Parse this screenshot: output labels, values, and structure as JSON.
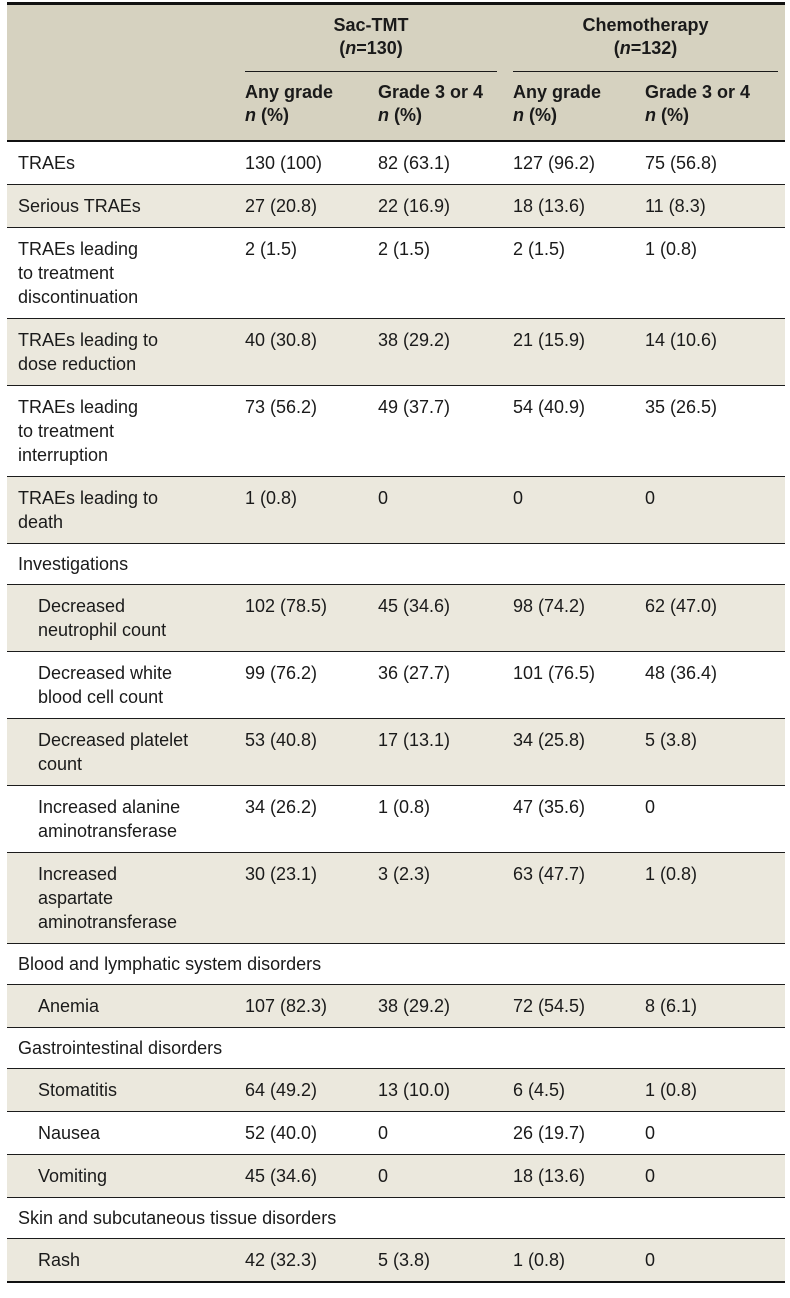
{
  "table": {
    "colors": {
      "header_bg": "#d6d2c0",
      "stripe_bg": "#ebe8dd",
      "rule": "#1c1c1c",
      "border": "#111111",
      "text": "#1a1a1a"
    },
    "groups": [
      {
        "label": "Sac-TMT",
        "subtitle": "(n=130)"
      },
      {
        "label": "Chemotherapy",
        "subtitle": "(n=132)"
      }
    ],
    "subcolumns": [
      {
        "title": "Any grade",
        "unit": "n (%)"
      },
      {
        "title": "Grade 3 or 4",
        "unit": "n (%)"
      },
      {
        "title": "Any grade",
        "unit": "n (%)"
      },
      {
        "title": "Grade 3 or 4",
        "unit": "n (%)"
      }
    ],
    "rows": [
      {
        "type": "item",
        "indent": 0,
        "shaded": false,
        "label": "TRAEs",
        "values": [
          "130 (100)",
          "82 (63.1)",
          "127 (96.2)",
          "75 (56.8)"
        ]
      },
      {
        "type": "item",
        "indent": 0,
        "shaded": true,
        "label": "Serious TRAEs",
        "values": [
          "27 (20.8)",
          "22 (16.9)",
          "18 (13.6)",
          "11 (8.3)"
        ]
      },
      {
        "type": "item",
        "indent": 0,
        "shaded": false,
        "label": "TRAEs leading\nto treatment\ndiscontinuation",
        "values": [
          "2 (1.5)",
          "2 (1.5)",
          "2 (1.5)",
          "1 (0.8)"
        ]
      },
      {
        "type": "item",
        "indent": 0,
        "shaded": true,
        "label": "TRAEs leading to\ndose reduction",
        "values": [
          "40 (30.8)",
          "38 (29.2)",
          "21 (15.9)",
          "14 (10.6)"
        ]
      },
      {
        "type": "item",
        "indent": 0,
        "shaded": false,
        "label": "TRAEs leading\nto treatment\ninterruption",
        "values": [
          "73 (56.2)",
          "49 (37.7)",
          "54 (40.9)",
          "35 (26.5)"
        ]
      },
      {
        "type": "item",
        "indent": 0,
        "shaded": true,
        "label": "TRAEs leading to\ndeath",
        "values": [
          "1 (0.8)",
          "0",
          "0",
          "0"
        ]
      },
      {
        "type": "section",
        "shaded": false,
        "label": "Investigations"
      },
      {
        "type": "item",
        "indent": 1,
        "shaded": true,
        "label": "Decreased\nneutrophil count",
        "values": [
          "102 (78.5)",
          "45 (34.6)",
          "98 (74.2)",
          "62 (47.0)"
        ]
      },
      {
        "type": "item",
        "indent": 1,
        "shaded": false,
        "label": "Decreased white\nblood cell count",
        "values": [
          "99 (76.2)",
          "36 (27.7)",
          "101 (76.5)",
          "48 (36.4)"
        ]
      },
      {
        "type": "item",
        "indent": 1,
        "shaded": true,
        "label": "Decreased platelet\ncount",
        "values": [
          "53 (40.8)",
          "17 (13.1)",
          "34 (25.8)",
          "5 (3.8)"
        ]
      },
      {
        "type": "item",
        "indent": 1,
        "shaded": false,
        "label": "Increased alanine\naminotransferase",
        "values": [
          "34 (26.2)",
          "1 (0.8)",
          "47 (35.6)",
          "0"
        ]
      },
      {
        "type": "item",
        "indent": 1,
        "shaded": true,
        "label": "Increased\naspartate\naminotransferase",
        "values": [
          "30 (23.1)",
          "3 (2.3)",
          "63 (47.7)",
          "1 (0.8)"
        ]
      },
      {
        "type": "section",
        "shaded": false,
        "label": "Blood and lymphatic system disorders"
      },
      {
        "type": "item",
        "indent": 1,
        "shaded": true,
        "label": "Anemia",
        "values": [
          "107 (82.3)",
          "38 (29.2)",
          "72 (54.5)",
          "8 (6.1)"
        ]
      },
      {
        "type": "section",
        "shaded": false,
        "label": "Gastrointestinal disorders"
      },
      {
        "type": "item",
        "indent": 1,
        "shaded": true,
        "label": "Stomatitis",
        "values": [
          "64 (49.2)",
          "13 (10.0)",
          "6 (4.5)",
          "1 (0.8)"
        ]
      },
      {
        "type": "item",
        "indent": 1,
        "shaded": false,
        "label": "Nausea",
        "values": [
          "52 (40.0)",
          "0",
          "26 (19.7)",
          "0"
        ]
      },
      {
        "type": "item",
        "indent": 1,
        "shaded": true,
        "label": "Vomiting",
        "values": [
          "45 (34.6)",
          "0",
          "18 (13.6)",
          "0"
        ]
      },
      {
        "type": "section",
        "shaded": false,
        "label": "Skin and subcutaneous tissue disorders"
      },
      {
        "type": "item",
        "indent": 1,
        "shaded": true,
        "label": "Rash",
        "values": [
          "42 (32.3)",
          "5 (3.8)",
          "1 (0.8)",
          "0"
        ]
      }
    ]
  }
}
